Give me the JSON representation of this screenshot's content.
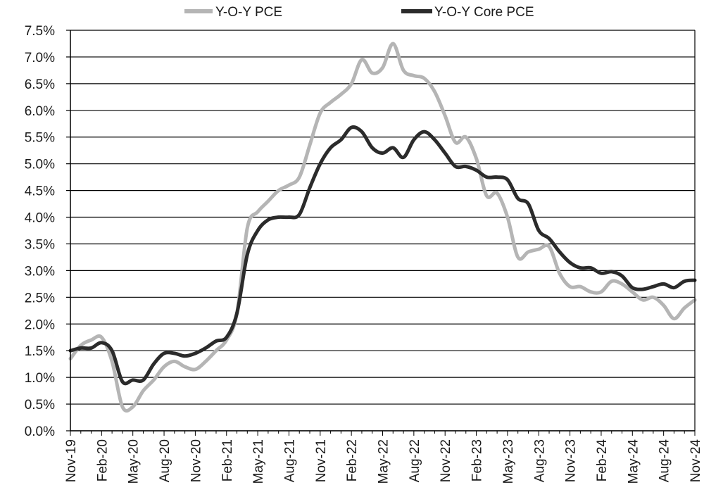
{
  "chart_data": {
    "type": "line",
    "title": "",
    "xlabel": "",
    "ylabel": "",
    "ylim": [
      0,
      7.5
    ],
    "y_ticks": [
      "0.0%",
      "0.5%",
      "1.0%",
      "1.5%",
      "2.0%",
      "2.5%",
      "3.0%",
      "3.5%",
      "4.0%",
      "4.5%",
      "5.0%",
      "5.5%",
      "6.0%",
      "6.5%",
      "7.0%",
      "7.5%"
    ],
    "x_tick_labels": [
      "Nov-19",
      "Feb-20",
      "May-20",
      "Aug-20",
      "Nov-20",
      "Feb-21",
      "May-21",
      "Aug-21",
      "Nov-21",
      "Feb-22",
      "May-22",
      "Aug-22",
      "Nov-22",
      "Feb-23",
      "May-23",
      "Aug-23",
      "Nov-23",
      "Feb-24",
      "May-24",
      "Aug-24",
      "Nov-24"
    ],
    "grid": "horizontal",
    "legend_position": "top",
    "months": [
      "Nov-19",
      "Dec-19",
      "Jan-20",
      "Feb-20",
      "Mar-20",
      "Apr-20",
      "May-20",
      "Jun-20",
      "Jul-20",
      "Aug-20",
      "Sep-20",
      "Oct-20",
      "Nov-20",
      "Dec-20",
      "Jan-21",
      "Feb-21",
      "Mar-21",
      "Apr-21",
      "May-21",
      "Jun-21",
      "Jul-21",
      "Aug-21",
      "Sep-21",
      "Oct-21",
      "Nov-21",
      "Dec-21",
      "Jan-22",
      "Feb-22",
      "Mar-22",
      "Apr-22",
      "May-22",
      "Jun-22",
      "Jul-22",
      "Aug-22",
      "Sep-22",
      "Oct-22",
      "Nov-22",
      "Dec-22",
      "Jan-23",
      "Feb-23",
      "Mar-23",
      "Apr-23",
      "May-23",
      "Jun-23",
      "Jul-23",
      "Aug-23",
      "Sep-23",
      "Oct-23",
      "Nov-23",
      "Dec-23",
      "Jan-24",
      "Feb-24",
      "Mar-24",
      "Apr-24",
      "May-24",
      "Jun-24",
      "Jul-24",
      "Aug-24",
      "Sep-24",
      "Oct-24",
      "Nov-24"
    ],
    "series": [
      {
        "name": "Y-O-Y PCE",
        "color": "#b5b5b5",
        "values": [
          1.35,
          1.6,
          1.7,
          1.75,
          1.3,
          0.45,
          0.45,
          0.75,
          0.95,
          1.2,
          1.3,
          1.2,
          1.15,
          1.3,
          1.5,
          1.7,
          2.2,
          3.8,
          4.1,
          4.3,
          4.5,
          4.6,
          4.75,
          5.35,
          5.95,
          6.15,
          6.3,
          6.5,
          6.95,
          6.7,
          6.8,
          7.25,
          6.75,
          6.65,
          6.6,
          6.35,
          5.9,
          5.4,
          5.5,
          5.1,
          4.4,
          4.45,
          4.0,
          3.25,
          3.35,
          3.4,
          3.45,
          2.95,
          2.7,
          2.7,
          2.6,
          2.6,
          2.8,
          2.75,
          2.6,
          2.45,
          2.5,
          2.35,
          2.1,
          2.3,
          2.45
        ]
      },
      {
        "name": "Y-O-Y Core PCE",
        "color": "#2b2b2b",
        "values": [
          1.5,
          1.55,
          1.55,
          1.65,
          1.5,
          0.92,
          0.95,
          0.95,
          1.25,
          1.45,
          1.45,
          1.4,
          1.45,
          1.55,
          1.68,
          1.75,
          2.2,
          3.3,
          3.75,
          3.95,
          4.0,
          4.0,
          4.05,
          4.55,
          5.0,
          5.3,
          5.45,
          5.68,
          5.6,
          5.3,
          5.2,
          5.3,
          5.12,
          5.45,
          5.6,
          5.45,
          5.2,
          4.95,
          4.95,
          4.88,
          4.75,
          4.75,
          4.7,
          4.35,
          4.25,
          3.75,
          3.6,
          3.35,
          3.15,
          3.05,
          3.05,
          2.95,
          2.98,
          2.9,
          2.68,
          2.65,
          2.7,
          2.75,
          2.68,
          2.8,
          2.82
        ]
      }
    ]
  }
}
